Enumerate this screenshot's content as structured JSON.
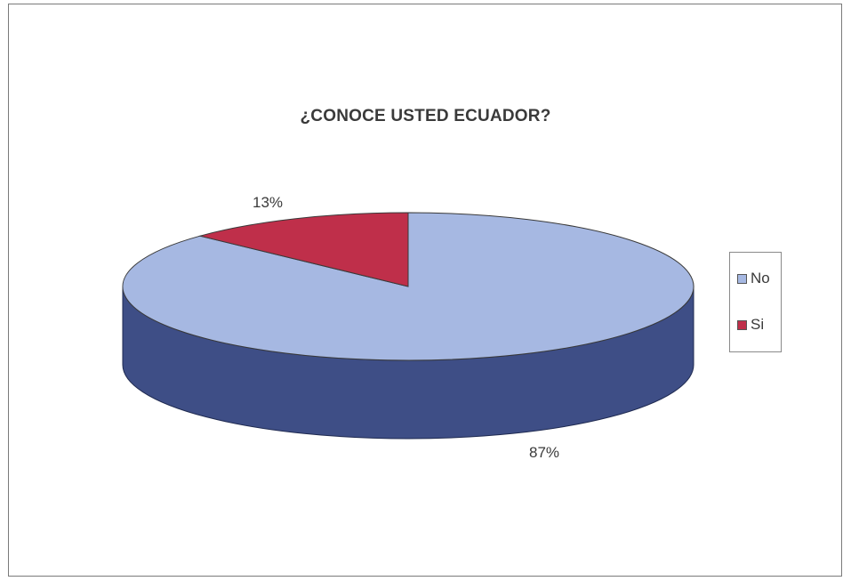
{
  "chart_data": {
    "type": "pie",
    "title": "¿CONOCE USTED ECUADOR?",
    "categories": [
      "No",
      "Si"
    ],
    "values": [
      87,
      13
    ],
    "data_labels": [
      "87%",
      "13%"
    ],
    "colors": {
      "No": {
        "top": "#a6b8e2",
        "side": "#3e4e86"
      },
      "Si": {
        "top": "#bf2f4a",
        "side": "#7d1c2e"
      }
    },
    "legend_position": "right",
    "style": "3d"
  },
  "legend": {
    "items": [
      {
        "label": "No"
      },
      {
        "label": "Si"
      }
    ]
  }
}
